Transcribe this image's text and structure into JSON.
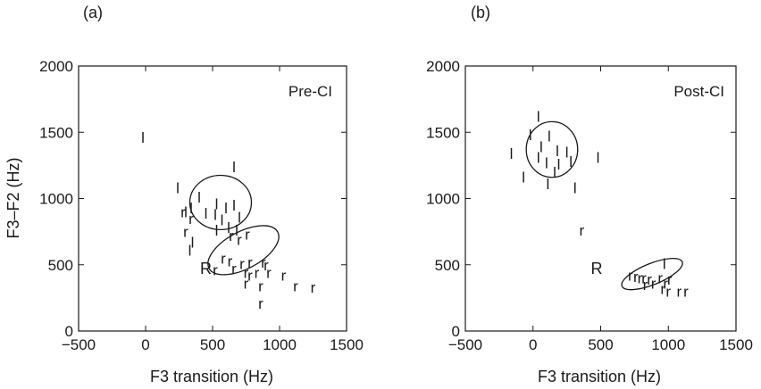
{
  "chart_data": [
    {
      "panel": "(a)",
      "type": "scatter",
      "annotation": "Pre-CI",
      "xlabel": "F3 transition (Hz)",
      "ylabel": "F3–F2 (Hz)",
      "xlim": [
        -500,
        1500
      ],
      "ylim": [
        0,
        2000
      ],
      "xticks": [
        "−500",
        "0",
        "500",
        "1000",
        "1500"
      ],
      "yticks": [
        "0",
        "500",
        "1000",
        "1500",
        "2000"
      ],
      "grid": false,
      "series": [
        {
          "name": "l",
          "points": [
            [
              -20,
              1460
            ],
            [
              660,
              1240
            ],
            [
              240,
              1080
            ],
            [
              400,
              1010
            ],
            [
              530,
              960
            ],
            [
              600,
              930
            ],
            [
              660,
              950
            ],
            [
              450,
              890
            ],
            [
              300,
              900
            ],
            [
              340,
              930
            ],
            [
              520,
              880
            ],
            [
              570,
              840
            ],
            [
              700,
              860
            ],
            [
              620,
              780
            ],
            [
              530,
              760
            ],
            [
              680,
              760
            ],
            [
              350,
              670
            ],
            [
              330,
              610
            ]
          ]
        },
        {
          "name": "r",
          "points": [
            [
              280,
              900
            ],
            [
              340,
              850
            ],
            [
              300,
              750
            ],
            [
              640,
              720
            ],
            [
              760,
              730
            ],
            [
              700,
              690
            ],
            [
              580,
              550
            ],
            [
              630,
              530
            ],
            [
              720,
              510
            ],
            [
              780,
              520
            ],
            [
              660,
              470
            ],
            [
              750,
              440
            ],
            [
              880,
              520
            ],
            [
              900,
              500
            ],
            [
              520,
              460
            ],
            [
              780,
              420
            ],
            [
              830,
              440
            ],
            [
              920,
              440
            ],
            [
              1030,
              420
            ],
            [
              750,
              360
            ],
            [
              860,
              340
            ],
            [
              1120,
              340
            ],
            [
              1250,
              330
            ],
            [
              860,
              210
            ]
          ]
        },
        {
          "name": "R",
          "points": [
            [
              450,
              470
            ]
          ]
        }
      ],
      "ellipses": [
        {
          "center": [
            560,
            970
          ],
          "rx": 230,
          "ry": 205,
          "angle_deg": 0
        },
        {
          "center": [
            730,
            610
          ],
          "rx": 290,
          "ry": 140,
          "angle_deg": -28
        }
      ],
      "glyphs": {
        "l": "l",
        "r": "r",
        "L": "L",
        "R": "R"
      }
    },
    {
      "panel": "(b)",
      "type": "scatter",
      "annotation": "Post-CI",
      "xlabel": "F3 transition (Hz)",
      "ylabel": "",
      "xlim": [
        -500,
        1500
      ],
      "ylim": [
        0,
        2000
      ],
      "xticks": [
        "−500",
        "0",
        "500",
        "1000",
        "1500"
      ],
      "yticks": [
        "0",
        "500",
        "1000",
        "1500",
        "2000"
      ],
      "grid": false,
      "series": [
        {
          "name": "l",
          "points": [
            [
              40,
              1620
            ],
            [
              -20,
              1480
            ],
            [
              120,
              1470
            ],
            [
              60,
              1390
            ],
            [
              -160,
              1340
            ],
            [
              180,
              1360
            ],
            [
              250,
              1350
            ],
            [
              40,
              1310
            ],
            [
              100,
              1270
            ],
            [
              190,
              1260
            ],
            [
              280,
              1280
            ],
            [
              160,
              1200
            ],
            [
              -70,
              1160
            ],
            [
              110,
              1110
            ],
            [
              310,
              1080
            ],
            [
              480,
              1310
            ],
            [
              970,
              510
            ]
          ]
        },
        {
          "name": "r",
          "points": [
            [
              360,
              760
            ],
            [
              760,
              410
            ],
            [
              790,
              400
            ],
            [
              820,
              400
            ],
            [
              860,
              390
            ],
            [
              830,
              350
            ],
            [
              890,
              360
            ],
            [
              940,
              400
            ],
            [
              980,
              360
            ],
            [
              1010,
              390
            ],
            [
              960,
              320
            ],
            [
              1000,
              300
            ],
            [
              1080,
              300
            ],
            [
              1130,
              300
            ],
            [
              720,
              420
            ]
          ]
        },
        {
          "name": "R",
          "points": [
            [
              470,
              470
            ]
          ]
        }
      ],
      "ellipses": [
        {
          "center": [
            140,
            1370
          ],
          "rx": 190,
          "ry": 210,
          "angle_deg": 0
        },
        {
          "center": [
            880,
            430
          ],
          "rx": 240,
          "ry": 80,
          "angle_deg": -22
        }
      ],
      "glyphs": {
        "l": "l",
        "r": "r",
        "L": "L",
        "R": "R"
      }
    }
  ]
}
